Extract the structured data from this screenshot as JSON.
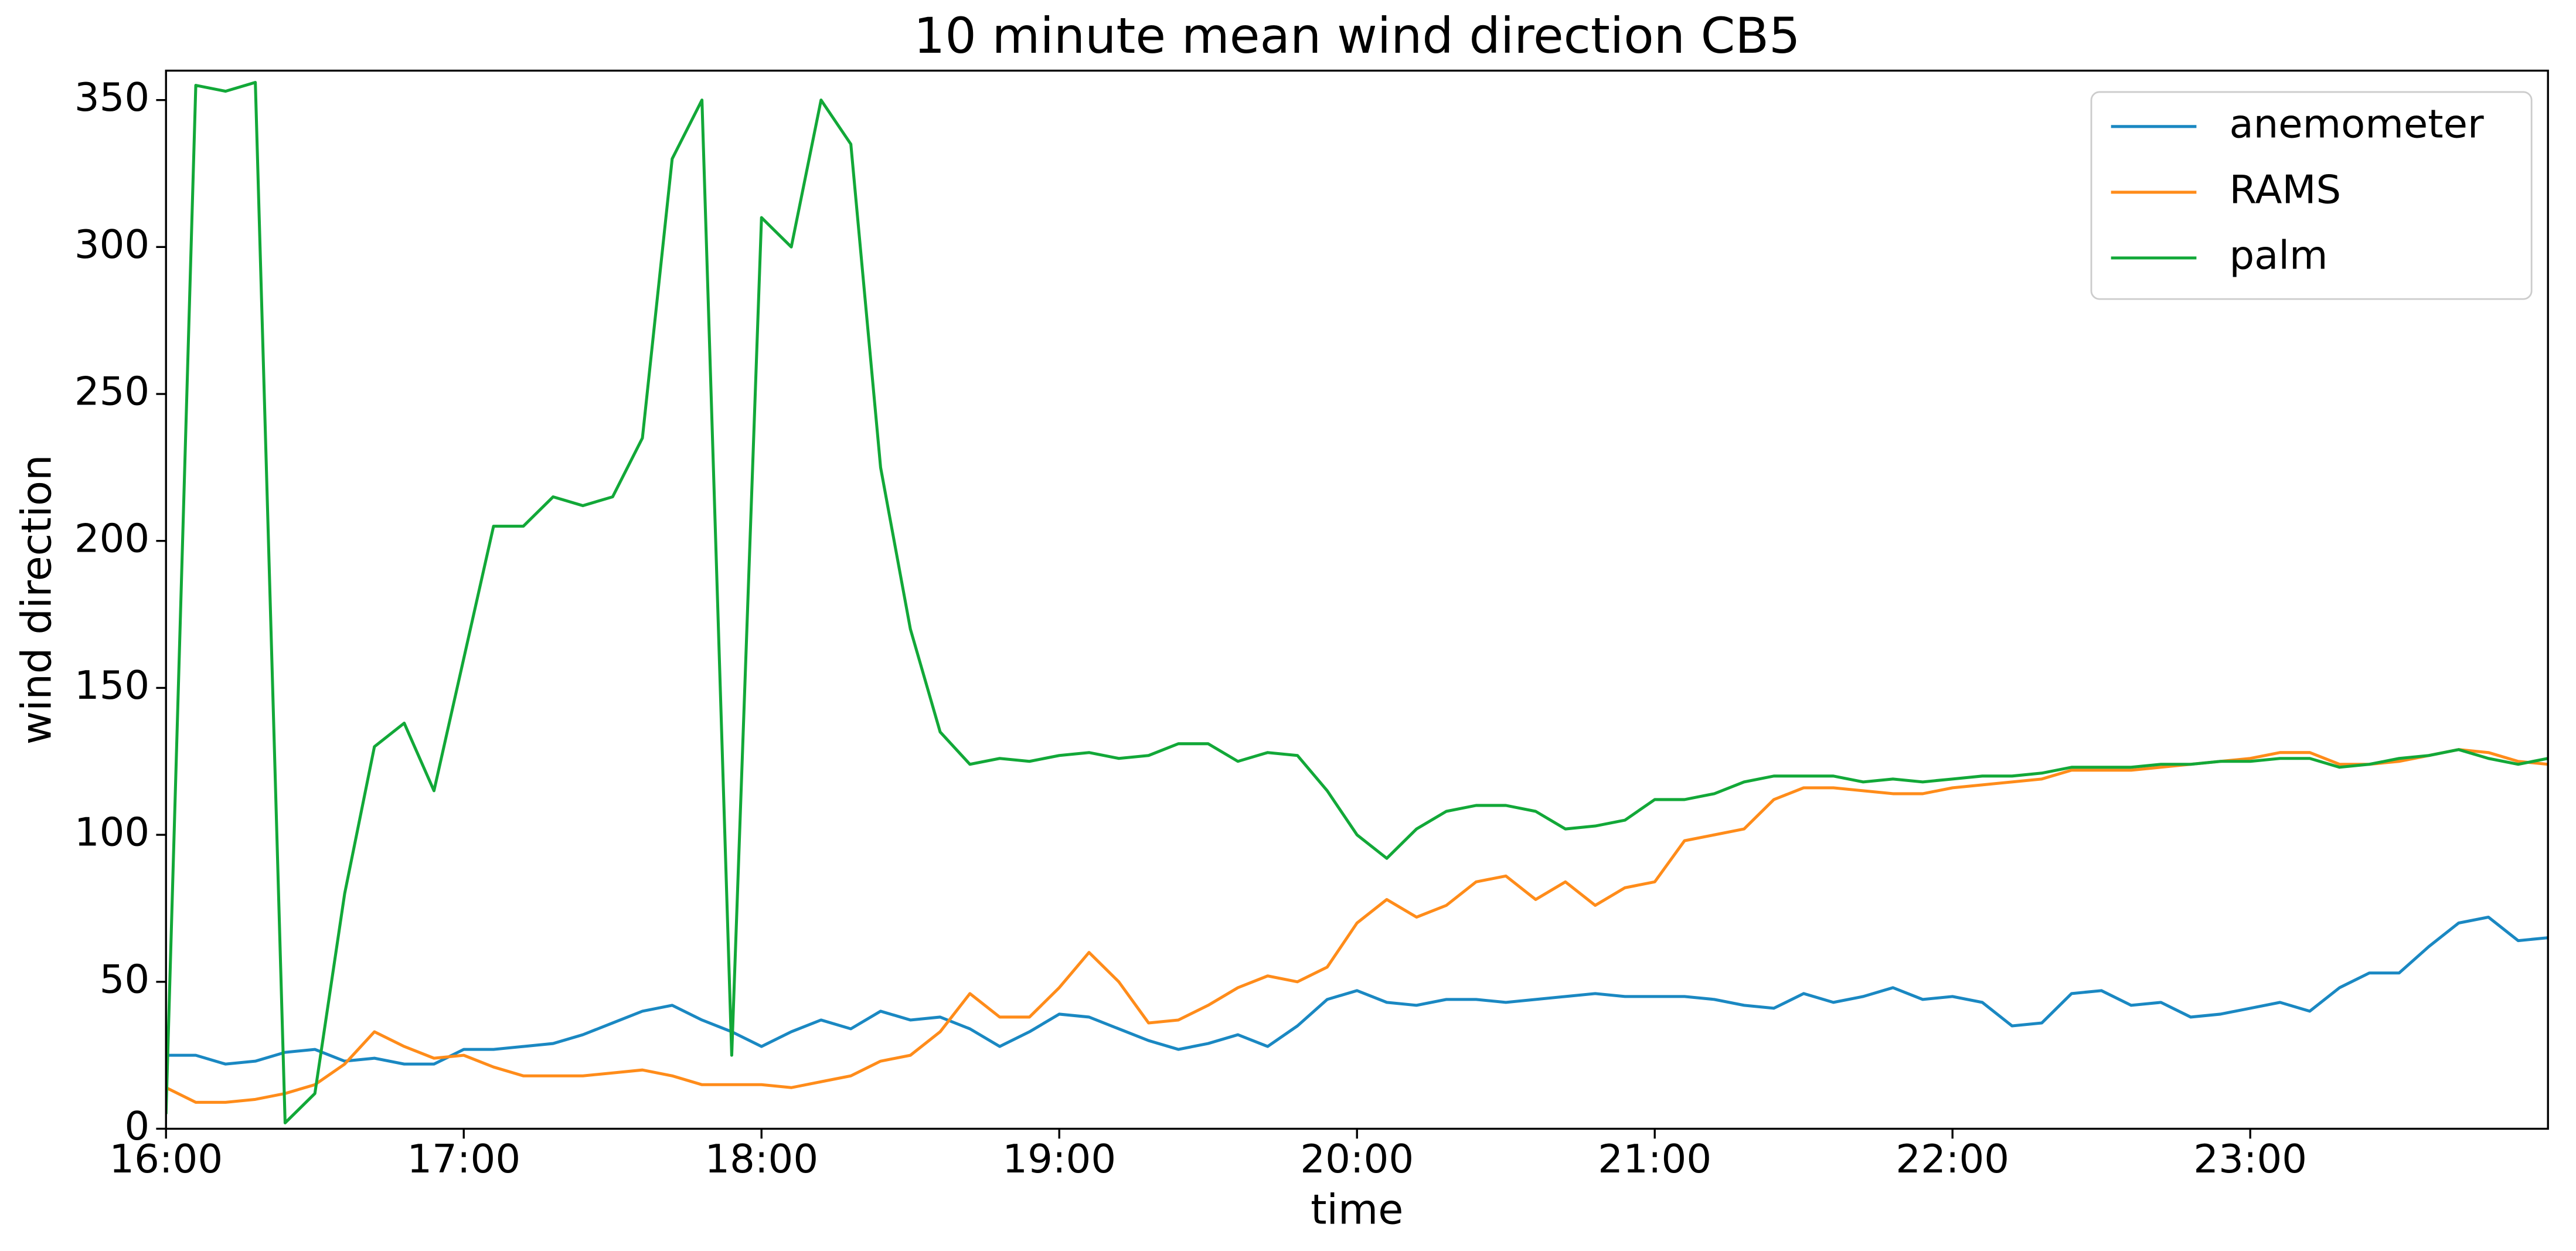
{
  "chart_data": {
    "type": "line",
    "title": "10 minute mean wind direction CB5",
    "x_label": "time",
    "y_label": "wind direction",
    "x": [
      16.0,
      16.1,
      16.2,
      16.3,
      16.4,
      16.5,
      16.6,
      16.7,
      16.8,
      16.9,
      17.0,
      17.1,
      17.2,
      17.3,
      17.4,
      17.5,
      17.6,
      17.7,
      17.8,
      17.9,
      18.0,
      18.1,
      18.2,
      18.3,
      18.4,
      18.5,
      18.6,
      18.7,
      18.8,
      18.9,
      19.0,
      19.1,
      19.2,
      19.3,
      19.4,
      19.5,
      19.6,
      19.7,
      19.8,
      19.9,
      20.0,
      20.1,
      20.2,
      20.3,
      20.4,
      20.5,
      20.6,
      20.7,
      20.8,
      20.9,
      21.0,
      21.1,
      21.2,
      21.3,
      21.4,
      21.5,
      21.6,
      21.7,
      21.8,
      21.9,
      22.0,
      22.1,
      22.2,
      22.3,
      22.4,
      22.5,
      22.6,
      22.7,
      22.8,
      22.9,
      23.0,
      23.1,
      23.2,
      23.3,
      23.4,
      23.5,
      23.6,
      23.7,
      23.8,
      23.9,
      24.0
    ],
    "series": [
      {
        "name": "anemometer",
        "color": "#1a88c2",
        "values": [
          25,
          25,
          22,
          23,
          26,
          27,
          23,
          24,
          22,
          22,
          27,
          27,
          28,
          29,
          32,
          36,
          40,
          42,
          37,
          33,
          28,
          33,
          37,
          34,
          40,
          37,
          38,
          34,
          28,
          33,
          39,
          38,
          34,
          30,
          27,
          29,
          32,
          28,
          35,
          44,
          47,
          43,
          42,
          44,
          44,
          43,
          44,
          45,
          46,
          45,
          45,
          45,
          44,
          42,
          41,
          46,
          43,
          45,
          48,
          44,
          45,
          43,
          35,
          36,
          46,
          47,
          42,
          43,
          38,
          39,
          41,
          43,
          40,
          48,
          53,
          53,
          62,
          70,
          72,
          64,
          65
        ]
      },
      {
        "name": "RAMS",
        "color": "#ff8c1a",
        "values": [
          14,
          9,
          9,
          10,
          12,
          15,
          22,
          33,
          28,
          24,
          25,
          21,
          18,
          18,
          18,
          19,
          20,
          18,
          15,
          15,
          15,
          14,
          16,
          18,
          23,
          25,
          33,
          46,
          38,
          38,
          48,
          60,
          50,
          36,
          37,
          42,
          48,
          52,
          50,
          55,
          70,
          78,
          72,
          76,
          84,
          86,
          78,
          84,
          76,
          82,
          84,
          98,
          100,
          102,
          112,
          116,
          116,
          115,
          114,
          114,
          116,
          117,
          118,
          119,
          122,
          122,
          122,
          123,
          124,
          125,
          126,
          128,
          128,
          124,
          124,
          125,
          127,
          129,
          128,
          125,
          124
        ]
      },
      {
        "name": "palm",
        "color": "#12a838",
        "values": [
          5,
          355,
          353,
          356,
          2,
          12,
          80,
          130,
          138,
          115,
          160,
          205,
          205,
          215,
          212,
          215,
          235,
          330,
          350,
          25,
          310,
          300,
          350,
          335,
          225,
          170,
          135,
          124,
          126,
          125,
          127,
          128,
          126,
          127,
          131,
          131,
          125,
          128,
          127,
          115,
          100,
          92,
          102,
          108,
          110,
          110,
          108,
          102,
          103,
          105,
          112,
          112,
          114,
          118,
          120,
          120,
          120,
          118,
          119,
          118,
          119,
          120,
          120,
          121,
          123,
          123,
          123,
          124,
          124,
          125,
          125,
          126,
          126,
          123,
          124,
          126,
          127,
          129,
          126,
          124,
          126
        ]
      }
    ],
    "xlim": [
      16,
      24
    ],
    "xticks": [
      {
        "value": 16,
        "label": "16:00"
      },
      {
        "value": 17,
        "label": "17:00"
      },
      {
        "value": 18,
        "label": "18:00"
      },
      {
        "value": 19,
        "label": "19:00"
      },
      {
        "value": 20,
        "label": "20:00"
      },
      {
        "value": 21,
        "label": "21:00"
      },
      {
        "value": 22,
        "label": "22:00"
      },
      {
        "value": 23,
        "label": "23:00"
      }
    ],
    "ylim": [
      0,
      360
    ],
    "yticks": [
      0,
      50,
      100,
      150,
      200,
      250,
      300,
      350
    ],
    "grid": false,
    "legend": "upper right"
  }
}
